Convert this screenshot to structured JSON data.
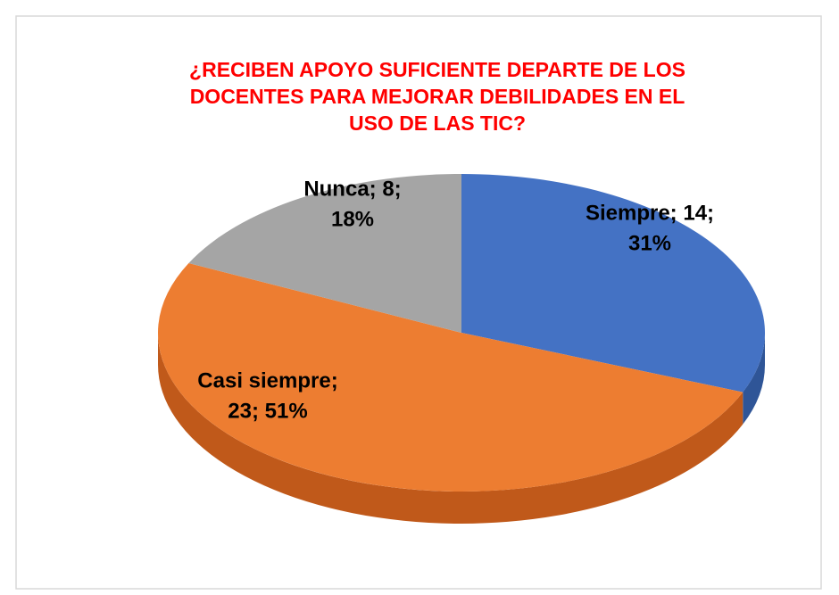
{
  "chart_data": {
    "type": "pie3d",
    "title": [
      "¿RECIBEN APOYO SUFICIENTE DEPARTE DE LOS",
      "DOCENTES PARA MEJORAR DEBILIDADES EN EL",
      "USO DE LAS TIC?"
    ],
    "categories": [
      "Siempre",
      "Casi siempre",
      "Nunca"
    ],
    "values": [
      14,
      23,
      8
    ],
    "value_labels": [
      [
        "Siempre; 14;",
        "31%"
      ],
      [
        "Casi siempre;",
        "23; 51%"
      ],
      [
        "Nunca; 8;",
        "18%"
      ]
    ],
    "colors": [
      "#4472c4",
      "#ed7d31",
      "#a5a5a5"
    ],
    "side_colors": [
      "#2f5597",
      "#c0591a",
      "#7b7b7b"
    ],
    "title_color": "#ff0000"
  }
}
